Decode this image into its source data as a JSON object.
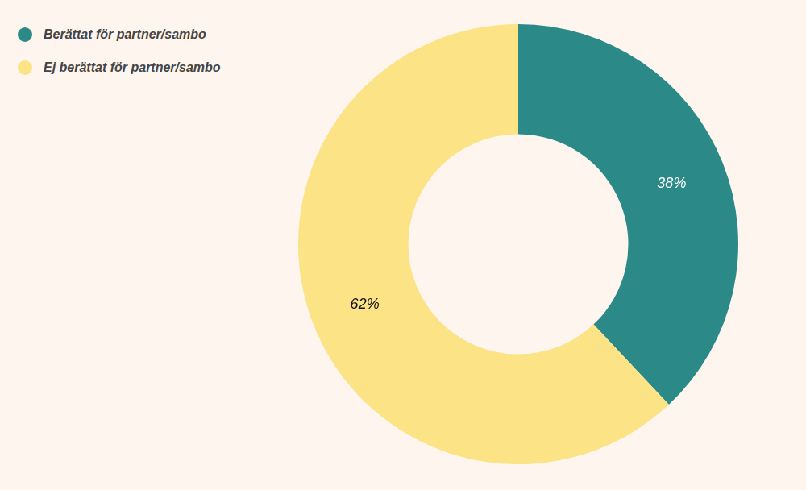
{
  "chart_data": {
    "type": "doughnut",
    "categories": [
      "Berättat för partner/sambo",
      "Ej berättat för partner/sambo"
    ],
    "values": [
      38,
      62
    ],
    "value_labels": [
      "38%",
      "62%"
    ],
    "colors": [
      "#2b8a87",
      "#fbe386"
    ],
    "data_labels": true,
    "legend": "top-left"
  }
}
